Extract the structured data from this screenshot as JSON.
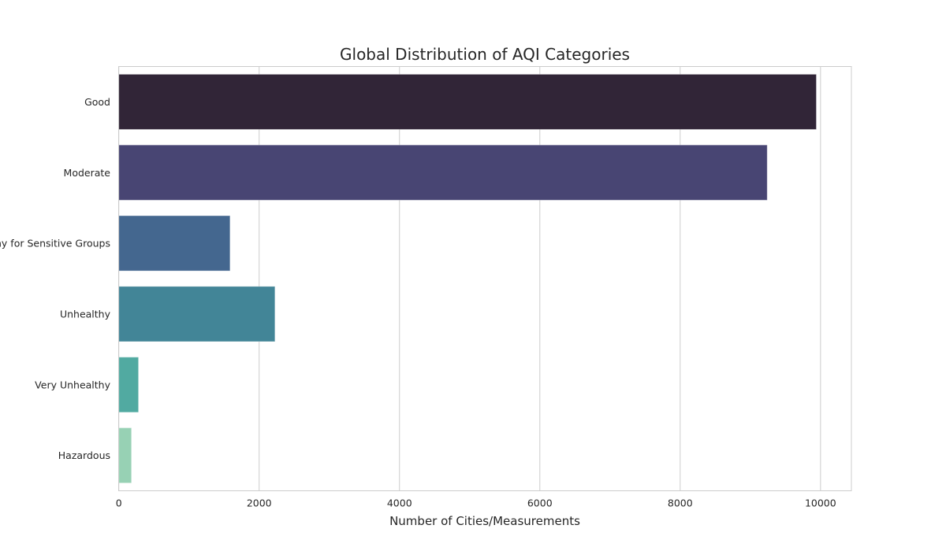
{
  "chart_data": {
    "type": "bar",
    "orientation": "horizontal",
    "title": "Global Distribution of AQI Categories",
    "xlabel": "Number of Cities/Measurements",
    "ylabel": "",
    "categories": [
      "Good",
      "Moderate",
      "Unhealthy for Sensitive Groups",
      "Unhealthy",
      "Very Unhealthy",
      "Hazardous"
    ],
    "values": [
      9940,
      9240,
      1585,
      2225,
      280,
      180
    ],
    "colors": [
      "#312537",
      "#484573",
      "#44678f",
      "#428597",
      "#51aaa1",
      "#97d1b4"
    ],
    "xlim": [
      0,
      10440
    ],
    "xticks": [
      0,
      2000,
      4000,
      6000,
      8000,
      10000
    ],
    "xtick_labels": [
      "0",
      "2000",
      "4000",
      "6000",
      "8000",
      "10000"
    ],
    "grid": "x",
    "style": "whitegrid"
  }
}
